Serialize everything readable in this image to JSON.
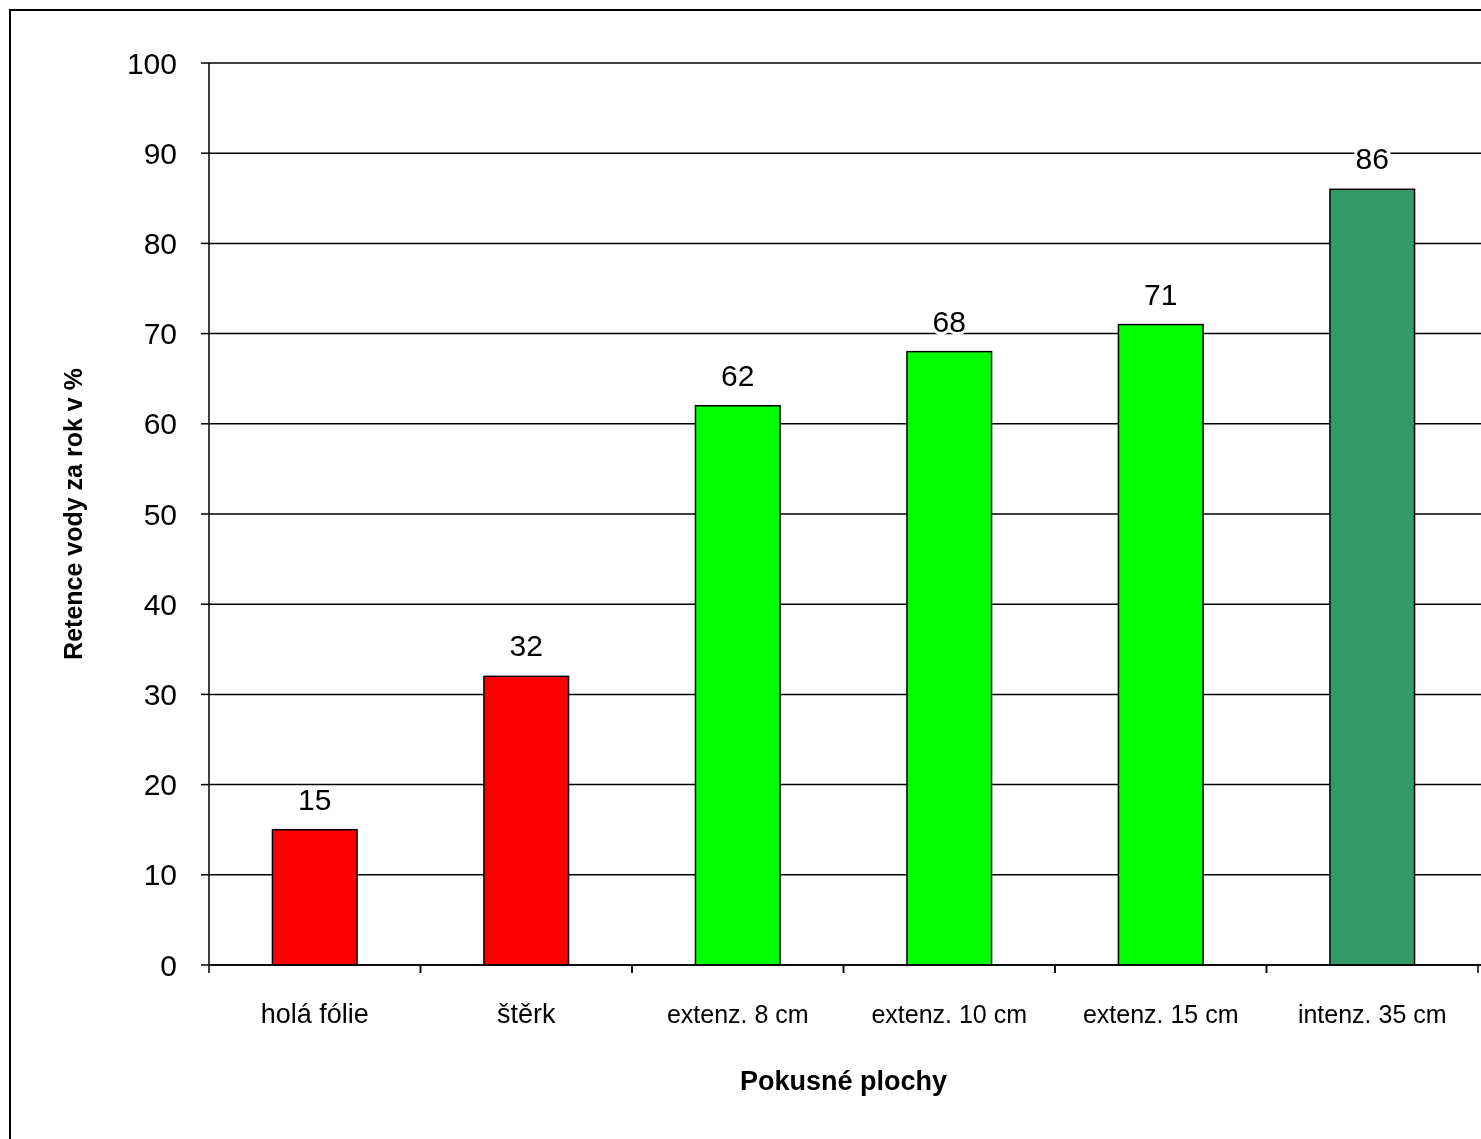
{
  "chart_data": {
    "type": "bar",
    "xlabel": "Pokusné plochy",
    "ylabel": "Retence vody za rok v %",
    "categories": [
      "holá fólie",
      "štěrk",
      "extenz. 8 cm",
      "extenz. 10 cm",
      "extenz. 15 cm",
      "intenz. 35 cm"
    ],
    "values": [
      15,
      32,
      62,
      68,
      71,
      86
    ],
    "colors": [
      "#ff0000",
      "#ff0000",
      "#00ff00",
      "#00ff00",
      "#00ff00",
      "#339966"
    ],
    "ylim": [
      0,
      100
    ],
    "yticks": [
      0,
      10,
      20,
      30,
      40,
      50,
      60,
      70,
      80,
      90,
      100
    ],
    "grid": "y",
    "data_labels": true
  }
}
